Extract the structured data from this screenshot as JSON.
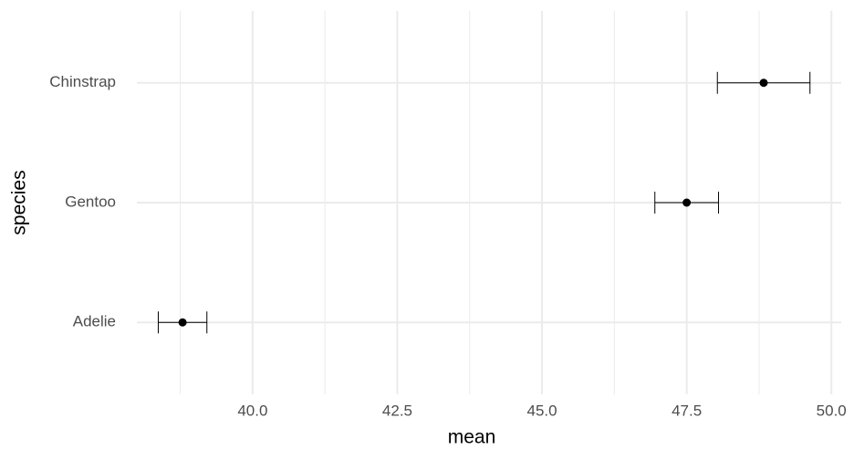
{
  "chart_data": {
    "type": "errorbar",
    "x_label": "mean",
    "y_label": "species",
    "categories": [
      "Adelie",
      "Gentoo",
      "Chinstrap"
    ],
    "values": [
      38.79,
      47.5,
      48.83
    ],
    "errors": [
      0.42,
      0.55,
      0.8
    ],
    "color": "#000000",
    "xlim": [
      38.0,
      50.17
    ],
    "xticks": [
      {
        "value": 40,
        "label": "40.0"
      },
      {
        "value": 42.5,
        "label": "42.5"
      },
      {
        "value": 45,
        "label": "45.0"
      },
      {
        "value": 47.5,
        "label": "47.5"
      },
      {
        "value": 50,
        "label": "50.0"
      }
    ],
    "x_minor_ticks": [
      38.75,
      41.25,
      43.75,
      46.25,
      48.75
    ],
    "grid": true
  }
}
